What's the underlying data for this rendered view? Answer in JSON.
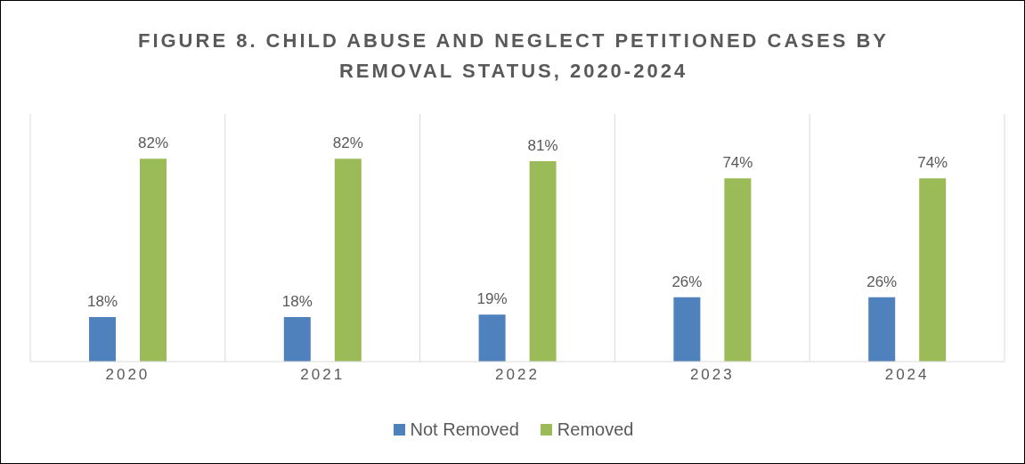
{
  "chart_data": {
    "type": "bar",
    "title": "FIGURE 8. CHILD ABUSE AND NEGLECT PETITIONED CASES BY REMOVAL STATUS, 2020-2024",
    "categories": [
      "2020",
      "2021",
      "2022",
      "2023",
      "2024"
    ],
    "series": [
      {
        "name": "Not Removed",
        "color": "#4f81bd",
        "values": [
          18,
          18,
          19,
          26,
          26
        ],
        "value_labels": [
          "18%",
          "18%",
          "19%",
          "26%",
          "26%"
        ]
      },
      {
        "name": "Removed",
        "color": "#9bbb59",
        "values": [
          82,
          82,
          81,
          74,
          74
        ],
        "value_labels": [
          "82%",
          "82%",
          "81%",
          "74%",
          "74%"
        ]
      }
    ],
    "grid": "x",
    "legend": "bottom"
  }
}
